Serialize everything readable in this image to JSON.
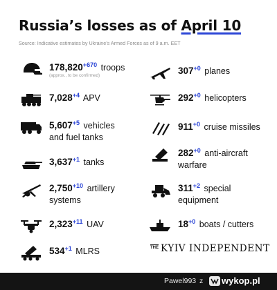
{
  "title": {
    "prefix": "Russia’s losses as of",
    "date": "April 10"
  },
  "source": "Source: Indicative estimates by Ukraine’s Armed Forces as of 9 a.m. EET",
  "left_items": [
    {
      "icon": "helmet-icon",
      "number": "178,820",
      "delta": "+670",
      "label": "troops",
      "note": "(approx., to be confirmed)"
    },
    {
      "icon": "apv-icon",
      "number": "7,028",
      "delta": "+4",
      "label": "APV"
    },
    {
      "icon": "truck-icon",
      "number": "5,607",
      "delta": "+5",
      "label": "vehicles",
      "label2": "and fuel tanks"
    },
    {
      "icon": "tank-icon",
      "number": "3,637",
      "delta": "+1",
      "label": "tanks"
    },
    {
      "icon": "artillery-icon",
      "number": "2,750",
      "delta": "+10",
      "label": "artillery",
      "label2": "systems"
    },
    {
      "icon": "drone-icon",
      "number": "2,323",
      "delta": "+11",
      "label": "UAV"
    },
    {
      "icon": "mlrs-icon",
      "number": "534",
      "delta": "+1",
      "label": "MLRS"
    }
  ],
  "right_items": [
    {
      "icon": "plane-icon",
      "number": "307",
      "delta": "+0",
      "label": "planes"
    },
    {
      "icon": "helicopter-icon",
      "number": "292",
      "delta": "+0",
      "label": "helicopters"
    },
    {
      "icon": "missile-icon",
      "number": "911",
      "delta": "+0",
      "label": "cruise missiles"
    },
    {
      "icon": "anti-aircraft-icon",
      "number": "282",
      "delta": "+0",
      "label": "anti-aircraft",
      "label2": "warfare"
    },
    {
      "icon": "special-equipment-icon",
      "number": "311",
      "delta": "+2",
      "label": "special",
      "label2": "equipment"
    },
    {
      "icon": "boat-icon",
      "number": "18",
      "delta": "+0",
      "label": "boats / cutters"
    }
  ],
  "brand": {
    "the": "THE",
    "name": "KYIV INDEPENDENT"
  },
  "footer": {
    "username": "Pawel993",
    "separator": "z",
    "site": "wykop.pl"
  },
  "colors": {
    "accent": "#2b45d6",
    "text": "#111111",
    "muted": "#8a8a8a"
  }
}
